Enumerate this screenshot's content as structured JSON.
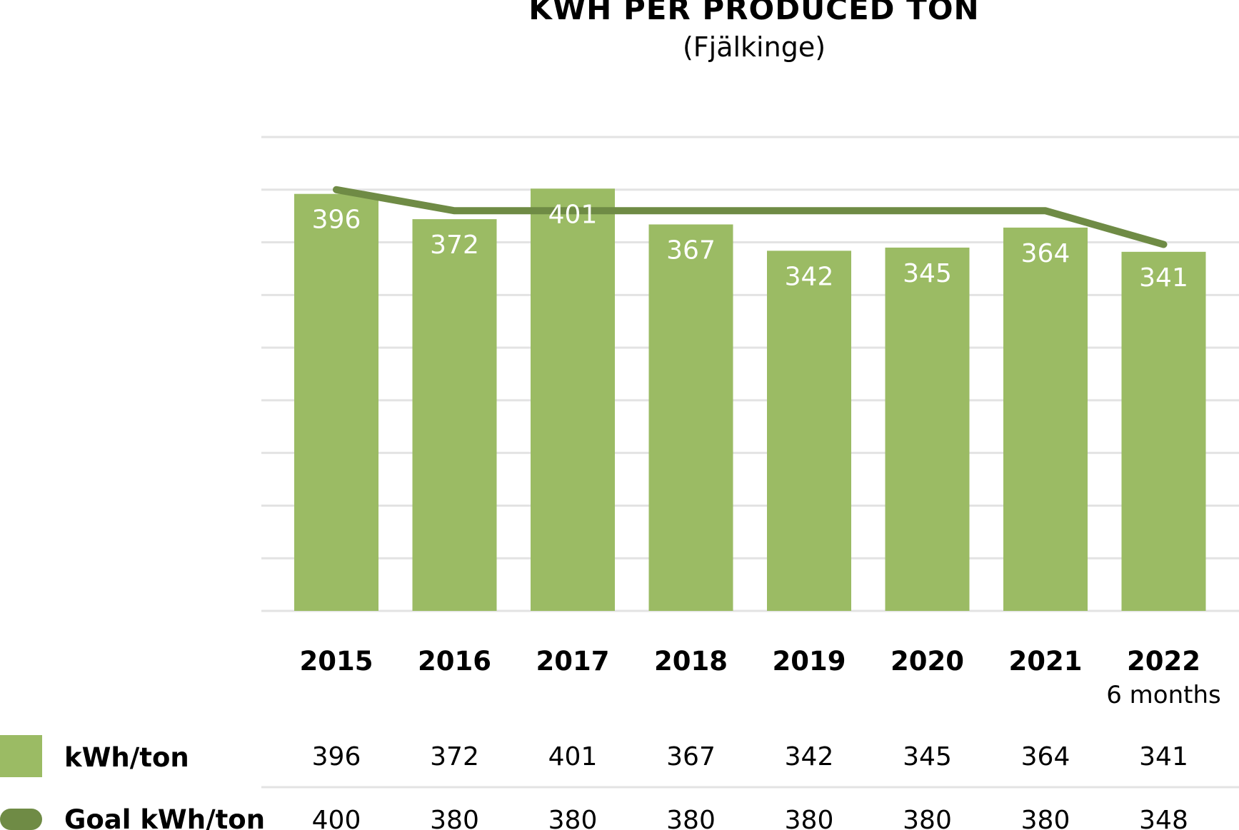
{
  "chart_data": {
    "type": "bar",
    "title": "KWH PER PRODUCED TON",
    "subtitle": "(Fjälkinge)",
    "categories": [
      "2015",
      "2016",
      "2017",
      "2018",
      "2019",
      "2020",
      "2021",
      "2022"
    ],
    "category_notes": [
      "",
      "",
      "",
      "",
      "",
      "",
      "",
      "6 months"
    ],
    "series": [
      {
        "name": "kWh/ton",
        "kind": "bar",
        "color": "#9bbb64",
        "values": [
          396,
          372,
          401,
          367,
          342,
          345,
          364,
          341
        ]
      },
      {
        "name": "Goal kWh/ton",
        "kind": "line",
        "color": "#6f8b45",
        "values": [
          400,
          380,
          380,
          380,
          380,
          380,
          380,
          348
        ]
      }
    ],
    "ylim": [
      0,
      450
    ],
    "grid": true,
    "legend_position": "bottom-left",
    "data_table": true,
    "label_color": "#ffffff"
  }
}
